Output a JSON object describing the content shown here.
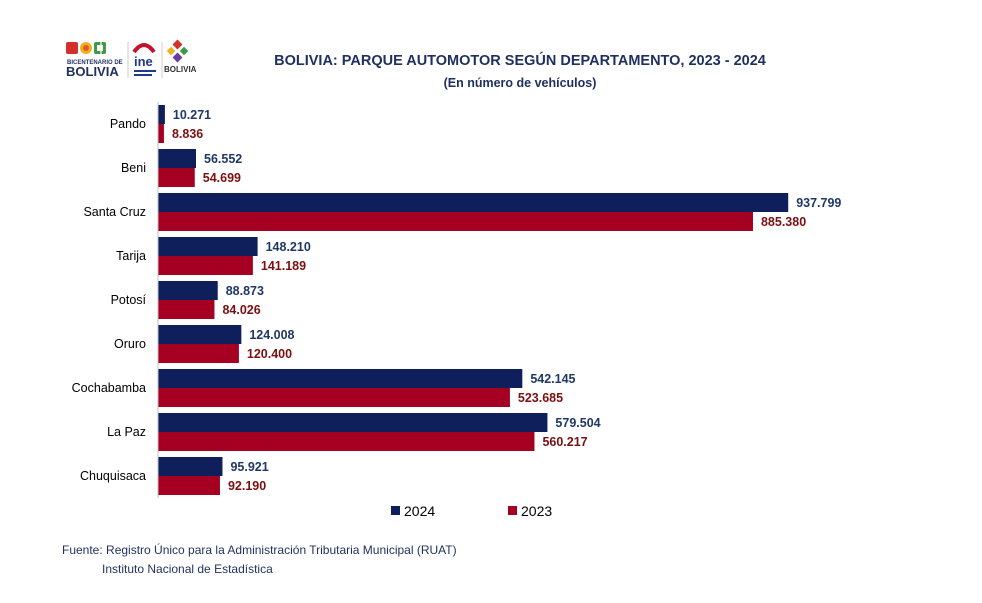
{
  "header": {
    "title": "BOLIVIA: PARQUE AUTOMOTOR SEGÚN DEPARTAMENTO, 2023 - 2024",
    "subtitle": "(En número de vehículos)"
  },
  "logos": {
    "bicentenario_small": "BICENTENARIO DE",
    "bicentenario_big": "BOLIVIA",
    "ine": "ine",
    "estado": "BOLIVIA"
  },
  "colors": {
    "series_2024": "#0f1f5c",
    "series_2023": "#a50021",
    "label_2024": "#1f3864",
    "label_2023": "#7b1010",
    "axis": "#bfbfbf"
  },
  "chart_data": {
    "type": "bar",
    "orientation": "horizontal",
    "categories": [
      "Pando",
      "Beni",
      "Santa Cruz",
      "Tarija",
      "Potosí",
      "Oruro",
      "Cochabamba",
      "La Paz",
      "Chuquisaca"
    ],
    "series": [
      {
        "name": "2024",
        "values": [
          10271,
          56552,
          937799,
          148210,
          88873,
          124008,
          542145,
          579504,
          95921
        ],
        "labels": [
          "10.271",
          "56.552",
          "937.799",
          "148.210",
          "88.873",
          "124.008",
          "542.145",
          "579.504",
          "95.921"
        ]
      },
      {
        "name": "2023",
        "values": [
          8836,
          54699,
          885380,
          141189,
          84026,
          120400,
          523685,
          560217,
          92190
        ],
        "labels": [
          "8.836",
          "54.699",
          "885.380",
          "141.189",
          "84.026",
          "120.400",
          "523.685",
          "560.217",
          "92.190"
        ]
      }
    ],
    "xlim": [
      0,
      1000000
    ],
    "grid": false,
    "legend": "bottom"
  },
  "footer": {
    "source": "Fuente: Registro Único para la Administración Tributaria Municipal (RUAT)",
    "institution": "Instituto Nacional de Estadística"
  }
}
